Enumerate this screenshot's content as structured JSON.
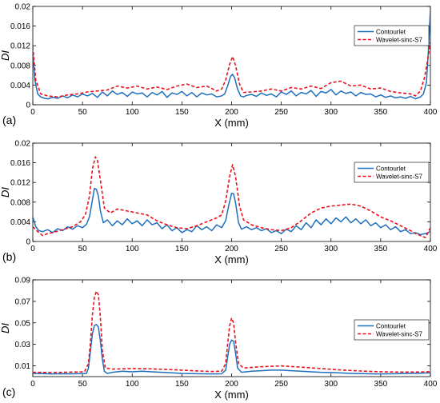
{
  "chart_data": [
    {
      "type": "line",
      "panel_label": "(a)",
      "xlabel": "X (mm)",
      "ylabel": "DI",
      "xlim": [
        0,
        400
      ],
      "ylim": [
        0,
        0.02
      ],
      "xticks": [
        0,
        50,
        100,
        150,
        200,
        250,
        300,
        350,
        400
      ],
      "yticks": [
        0,
        0.004,
        0.008,
        0.012,
        0.016,
        0.02
      ],
      "ytick_labels": [
        "0",
        "0.004",
        "0.008",
        "0.012",
        "0.016",
        "0.02"
      ],
      "legend_position": "top-right",
      "grid": false,
      "series": [
        {
          "name": "Contourlet",
          "color": "#1f6fbf",
          "style": "solid",
          "x": [
            0,
            2,
            5,
            8,
            12,
            15,
            20,
            25,
            30,
            35,
            40,
            45,
            50,
            55,
            60,
            65,
            70,
            75,
            80,
            85,
            90,
            95,
            100,
            105,
            110,
            115,
            120,
            125,
            130,
            135,
            140,
            145,
            150,
            155,
            160,
            165,
            170,
            175,
            180,
            185,
            190,
            193,
            196,
            199,
            201,
            203,
            206,
            209,
            212,
            215,
            220,
            225,
            230,
            235,
            240,
            245,
            250,
            255,
            260,
            265,
            270,
            275,
            280,
            285,
            290,
            295,
            300,
            305,
            310,
            315,
            320,
            325,
            330,
            335,
            340,
            345,
            350,
            355,
            360,
            365,
            370,
            375,
            380,
            385,
            390,
            393,
            396,
            398,
            400
          ],
          "values": [
            0.011,
            0.005,
            0.0022,
            0.0016,
            0.0013,
            0.0012,
            0.0015,
            0.0013,
            0.0018,
            0.0014,
            0.002,
            0.0016,
            0.0022,
            0.0018,
            0.0023,
            0.0015,
            0.0026,
            0.0018,
            0.0028,
            0.0021,
            0.0025,
            0.0017,
            0.0026,
            0.0022,
            0.0024,
            0.0016,
            0.0025,
            0.002,
            0.0027,
            0.0015,
            0.0024,
            0.0021,
            0.0027,
            0.0018,
            0.0025,
            0.0016,
            0.0024,
            0.002,
            0.0022,
            0.0016,
            0.0018,
            0.0022,
            0.0038,
            0.0058,
            0.0062,
            0.0055,
            0.0032,
            0.0018,
            0.0016,
            0.0019,
            0.0021,
            0.0017,
            0.0024,
            0.0019,
            0.0022,
            0.0016,
            0.0026,
            0.0021,
            0.0028,
            0.0018,
            0.0025,
            0.0022,
            0.0029,
            0.0017,
            0.0027,
            0.0024,
            0.0031,
            0.002,
            0.0028,
            0.0023,
            0.0026,
            0.0018,
            0.0025,
            0.0021,
            0.0022,
            0.0016,
            0.002,
            0.0015,
            0.0018,
            0.0014,
            0.0016,
            0.0013,
            0.0017,
            0.0012,
            0.0016,
            0.0022,
            0.0045,
            0.011,
            0.0195
          ]
        },
        {
          "name": "Wavelet-sinc-S7",
          "color": "#e8111d",
          "style": "dashed",
          "x": [
            0,
            3,
            8,
            15,
            25,
            35,
            45,
            55,
            65,
            75,
            85,
            95,
            105,
            115,
            125,
            135,
            145,
            155,
            165,
            175,
            185,
            190,
            194,
            198,
            201,
            204,
            208,
            212,
            220,
            230,
            240,
            250,
            260,
            270,
            280,
            290,
            300,
            310,
            320,
            330,
            340,
            350,
            360,
            370,
            380,
            385,
            390,
            394,
            397,
            400
          ],
          "values": [
            0.0118,
            0.005,
            0.0022,
            0.0018,
            0.0016,
            0.002,
            0.0022,
            0.0026,
            0.0028,
            0.003,
            0.0038,
            0.0034,
            0.0038,
            0.0032,
            0.0036,
            0.0031,
            0.0038,
            0.0042,
            0.0035,
            0.0038,
            0.0028,
            0.0032,
            0.005,
            0.0082,
            0.0098,
            0.008,
            0.0042,
            0.0025,
            0.0026,
            0.0028,
            0.0032,
            0.0028,
            0.0035,
            0.0032,
            0.0038,
            0.0033,
            0.0045,
            0.0048,
            0.0038,
            0.004,
            0.0032,
            0.0034,
            0.0027,
            0.0024,
            0.0022,
            0.0018,
            0.0028,
            0.0055,
            0.0088,
            0.0128
          ]
        }
      ]
    },
    {
      "type": "line",
      "panel_label": "(b)",
      "xlabel": "X (mm)",
      "ylabel": "DI",
      "xlim": [
        0,
        400
      ],
      "ylim": [
        0,
        0.02
      ],
      "xticks": [
        0,
        50,
        100,
        150,
        200,
        250,
        300,
        350,
        400
      ],
      "yticks": [
        0,
        0.004,
        0.008,
        0.012,
        0.016,
        0.02
      ],
      "ytick_labels": [
        "0",
        "0.004",
        "0.008",
        "0.012",
        "0.016",
        "0.02"
      ],
      "legend_position": "top-right",
      "grid": false,
      "series": [
        {
          "name": "Contourlet",
          "color": "#1f6fbf",
          "style": "solid",
          "x": [
            0,
            3,
            6,
            10,
            15,
            20,
            25,
            30,
            35,
            40,
            45,
            50,
            54,
            57,
            60,
            62,
            64,
            66,
            68,
            71,
            75,
            80,
            85,
            90,
            95,
            100,
            105,
            110,
            115,
            120,
            125,
            130,
            135,
            140,
            145,
            150,
            155,
            160,
            165,
            170,
            175,
            180,
            185,
            190,
            194,
            197,
            200,
            202,
            204,
            207,
            210,
            215,
            220,
            225,
            230,
            235,
            240,
            245,
            250,
            255,
            260,
            265,
            270,
            275,
            280,
            285,
            290,
            295,
            300,
            305,
            310,
            315,
            320,
            325,
            330,
            335,
            340,
            345,
            350,
            355,
            360,
            365,
            370,
            375,
            380,
            385,
            390,
            395,
            400
          ],
          "values": [
            0.005,
            0.003,
            0.0022,
            0.002,
            0.0024,
            0.0018,
            0.0026,
            0.0022,
            0.003,
            0.0025,
            0.0032,
            0.0028,
            0.0035,
            0.005,
            0.0085,
            0.0108,
            0.0106,
            0.0092,
            0.0062,
            0.0038,
            0.0044,
            0.0032,
            0.0042,
            0.0034,
            0.0046,
            0.0036,
            0.0042,
            0.0032,
            0.0044,
            0.0034,
            0.0038,
            0.0026,
            0.0034,
            0.0022,
            0.0028,
            0.0018,
            0.0024,
            0.002,
            0.0032,
            0.0024,
            0.003,
            0.0022,
            0.0034,
            0.0028,
            0.0042,
            0.0072,
            0.0098,
            0.0097,
            0.0078,
            0.0038,
            0.0025,
            0.003,
            0.0024,
            0.0028,
            0.0022,
            0.0026,
            0.0018,
            0.0022,
            0.0016,
            0.0025,
            0.002,
            0.0032,
            0.0024,
            0.0038,
            0.0028,
            0.0044,
            0.0034,
            0.0046,
            0.0036,
            0.0048,
            0.004,
            0.005,
            0.0038,
            0.0046,
            0.0036,
            0.0044,
            0.0032,
            0.0038,
            0.0028,
            0.0034,
            0.0024,
            0.003,
            0.002,
            0.0024,
            0.0016,
            0.0018,
            0.0014,
            0.0016,
            0.002
          ]
        },
        {
          "name": "Wavelet-sinc-S7",
          "color": "#e8111d",
          "style": "dashed",
          "x": [
            0,
            5,
            10,
            15,
            20,
            30,
            40,
            48,
            53,
            57,
            60,
            63,
            65,
            68,
            72,
            78,
            85,
            95,
            105,
            115,
            125,
            135,
            145,
            155,
            165,
            175,
            185,
            190,
            194,
            198,
            201,
            204,
            208,
            212,
            220,
            230,
            240,
            250,
            260,
            270,
            280,
            290,
            300,
            310,
            320,
            330,
            340,
            350,
            360,
            370,
            380,
            385,
            390,
            395,
            400
          ],
          "values": [
            0.003,
            0.002,
            0.0012,
            0.0016,
            0.0018,
            0.0024,
            0.003,
            0.004,
            0.0055,
            0.0092,
            0.0148,
            0.0172,
            0.0165,
            0.0125,
            0.0068,
            0.0058,
            0.0066,
            0.0062,
            0.0058,
            0.0054,
            0.0042,
            0.0034,
            0.0028,
            0.0026,
            0.0032,
            0.004,
            0.0048,
            0.0054,
            0.0082,
            0.0132,
            0.0156,
            0.0132,
            0.0072,
            0.0044,
            0.0034,
            0.0028,
            0.0024,
            0.0022,
            0.0028,
            0.0042,
            0.0058,
            0.0068,
            0.0072,
            0.0074,
            0.0076,
            0.0072,
            0.0062,
            0.005,
            0.0042,
            0.0032,
            0.0022,
            0.0016,
            0.0012,
            0.0008,
            0.0028
          ]
        }
      ]
    },
    {
      "type": "line",
      "panel_label": "(c)",
      "xlabel": "X (mm)",
      "ylabel": "DI",
      "xlim": [
        0,
        400
      ],
      "ylim": [
        0,
        0.09
      ],
      "xticks": [
        0,
        50,
        100,
        150,
        200,
        250,
        300,
        350,
        400
      ],
      "yticks": [
        0.01,
        0.03,
        0.05,
        0.07,
        0.09
      ],
      "ytick_labels": [
        "0.01",
        "0.03",
        "0.05",
        "0.07",
        "0.09"
      ],
      "legend_position": "right",
      "grid": false,
      "series": [
        {
          "name": "Contourlet",
          "color": "#1f6fbf",
          "style": "solid",
          "x": [
            0,
            10,
            20,
            30,
            40,
            50,
            54,
            56,
            58,
            60,
            62,
            64,
            66,
            68,
            70,
            72,
            75,
            80,
            90,
            100,
            110,
            120,
            130,
            140,
            150,
            160,
            170,
            180,
            190,
            194,
            196,
            198,
            200,
            202,
            204,
            206,
            210,
            220,
            230,
            240,
            250,
            260,
            270,
            280,
            290,
            300,
            310,
            320,
            330,
            340,
            350,
            360,
            370,
            380,
            390,
            400
          ],
          "values": [
            0.003,
            0.0028,
            0.0025,
            0.0027,
            0.0026,
            0.0028,
            0.003,
            0.008,
            0.024,
            0.04,
            0.0475,
            0.0485,
            0.046,
            0.033,
            0.016,
            0.005,
            0.003,
            0.004,
            0.005,
            0.0045,
            0.005,
            0.0045,
            0.004,
            0.0035,
            0.003,
            0.0028,
            0.0026,
            0.0025,
            0.0026,
            0.006,
            0.018,
            0.03,
            0.034,
            0.033,
            0.022,
            0.008,
            0.004,
            0.005,
            0.0055,
            0.006,
            0.006,
            0.0055,
            0.005,
            0.0045,
            0.004,
            0.0038,
            0.0034,
            0.003,
            0.0028,
            0.0026,
            0.0025,
            0.0026,
            0.0028,
            0.003,
            0.0032,
            0.0035
          ]
        },
        {
          "name": "Wavelet-sinc-S7",
          "color": "#e8111d",
          "style": "dashed",
          "x": [
            0,
            20,
            40,
            52,
            56,
            58,
            60,
            62,
            64,
            66,
            68,
            70,
            73,
            80,
            100,
            120,
            140,
            160,
            180,
            190,
            194,
            196,
            198,
            200,
            202,
            204,
            207,
            212,
            230,
            250,
            270,
            290,
            310,
            330,
            350,
            370,
            385,
            400
          ],
          "values": [
            0.004,
            0.0038,
            0.0042,
            0.0045,
            0.012,
            0.032,
            0.058,
            0.074,
            0.0795,
            0.076,
            0.055,
            0.024,
            0.008,
            0.007,
            0.0075,
            0.0072,
            0.0065,
            0.0055,
            0.0048,
            0.005,
            0.012,
            0.03,
            0.047,
            0.0545,
            0.05,
            0.032,
            0.012,
            0.008,
            0.0092,
            0.01,
            0.0088,
            0.0075,
            0.0062,
            0.0052,
            0.0045,
            0.0042,
            0.0042,
            0.0045
          ]
        }
      ]
    }
  ]
}
